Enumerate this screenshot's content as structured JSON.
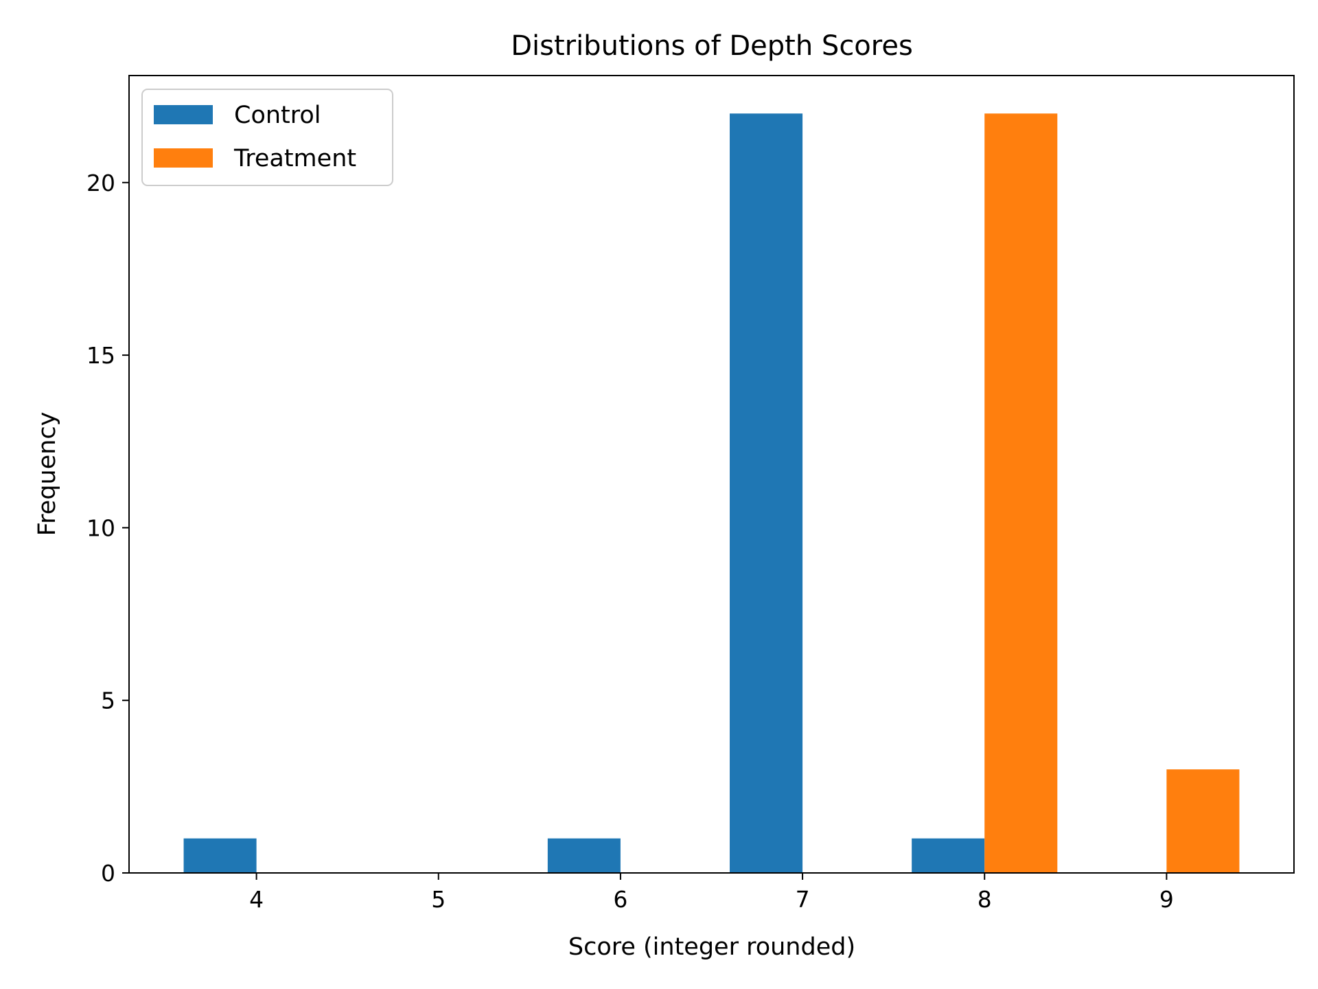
{
  "chart_data": {
    "type": "bar",
    "title": "Distributions of Depth Scores",
    "xlabel": "Score (integer rounded)",
    "ylabel": "Frequency",
    "categories": [
      4,
      5,
      6,
      7,
      8,
      9
    ],
    "series": [
      {
        "name": "Control",
        "color": "#1f77b4",
        "values": [
          1,
          0,
          1,
          22,
          1,
          0
        ]
      },
      {
        "name": "Treatment",
        "color": "#ff7f0e",
        "values": [
          0,
          0,
          0,
          0,
          22,
          3
        ]
      }
    ],
    "xlim": [
      3.3,
      9.7
    ],
    "ylim": [
      0,
      23.1
    ],
    "xticks": [
      4,
      5,
      6,
      7,
      8,
      9
    ],
    "yticks": [
      0,
      5,
      10,
      15,
      20
    ],
    "grid": false,
    "legend": "top-left"
  }
}
